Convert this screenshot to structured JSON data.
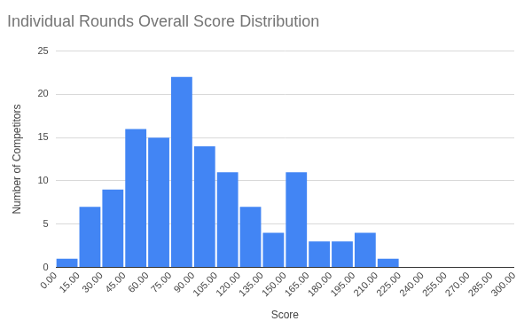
{
  "chart_data": {
    "type": "histogram",
    "title": "Individual Rounds Overall Score Distribution",
    "x_label": "Score",
    "y_label": "Number of Competitors",
    "bins": [
      0,
      15,
      30,
      45,
      60,
      75,
      90,
      105,
      120,
      135,
      150,
      165,
      180,
      195,
      210,
      225,
      240,
      255,
      270,
      285,
      300
    ],
    "values": [
      1,
      7,
      9,
      16,
      15,
      22,
      14,
      11,
      7,
      4,
      11,
      3,
      3,
      4,
      1,
      0,
      0,
      0,
      0,
      0
    ],
    "color": "#4285f4",
    "xlim": [
      0,
      300
    ],
    "xticks": [
      {
        "value": 0,
        "label": "0.00"
      },
      {
        "value": 15,
        "label": "15.00"
      },
      {
        "value": 30,
        "label": "30.00"
      },
      {
        "value": 45,
        "label": "45.00"
      },
      {
        "value": 60,
        "label": "60.00"
      },
      {
        "value": 75,
        "label": "75.00"
      },
      {
        "value": 90,
        "label": "90.00"
      },
      {
        "value": 105,
        "label": "105.00"
      },
      {
        "value": 120,
        "label": "120.00"
      },
      {
        "value": 135,
        "label": "135.00"
      },
      {
        "value": 150,
        "label": "150.00"
      },
      {
        "value": 165,
        "label": "165.00"
      },
      {
        "value": 180,
        "label": "180.00"
      },
      {
        "value": 195,
        "label": "195.00"
      },
      {
        "value": 210,
        "label": "210.00"
      },
      {
        "value": 225,
        "label": "225.00"
      },
      {
        "value": 240,
        "label": "240.00"
      },
      {
        "value": 255,
        "label": "255.00"
      },
      {
        "value": 270,
        "label": "270.00"
      },
      {
        "value": 285,
        "label": "285.00"
      },
      {
        "value": 300,
        "label": "300.00"
      }
    ],
    "ylim": [
      0,
      25
    ],
    "yticks": [
      0,
      5,
      10,
      15,
      20,
      25
    ],
    "grid": "y"
  }
}
